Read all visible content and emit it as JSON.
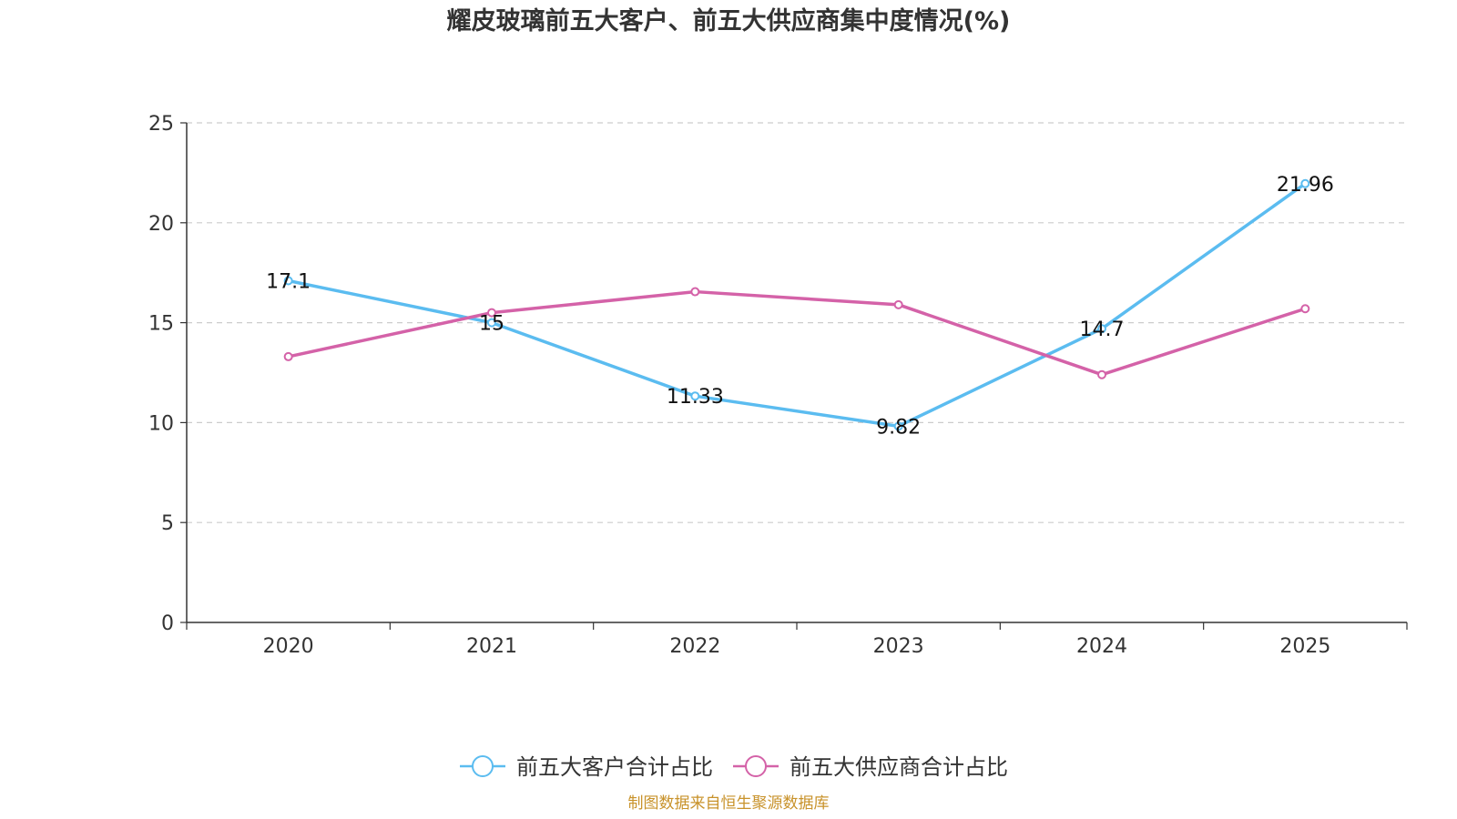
{
  "chart_data": {
    "type": "line",
    "title": "耀皮玻璃前五大客户、前五大供应商集中度情况(%)",
    "categories": [
      "2020",
      "2021",
      "2022",
      "2023",
      "2024",
      "2025"
    ],
    "ylim": [
      0,
      25
    ],
    "yticks": [
      0,
      5,
      10,
      15,
      20,
      25
    ],
    "grid": true,
    "legend_position": "bottom",
    "series": [
      {
        "name": "前五大客户合计占比",
        "color": "#5bbcf0",
        "values": [
          17.1,
          15,
          11.33,
          9.82,
          14.7,
          21.96
        ],
        "labels": [
          "17.1",
          "15",
          "11.33",
          "9.82",
          "14.7",
          "21.96"
        ]
      },
      {
        "name": "前五大供应商合计占比",
        "color": "#d462a8",
        "values": [
          13.3,
          15.5,
          16.55,
          15.9,
          12.4,
          15.7
        ],
        "labels": null
      }
    ],
    "source": "制图数据来自恒生聚源数据库",
    "source_color": "#c8922a"
  }
}
